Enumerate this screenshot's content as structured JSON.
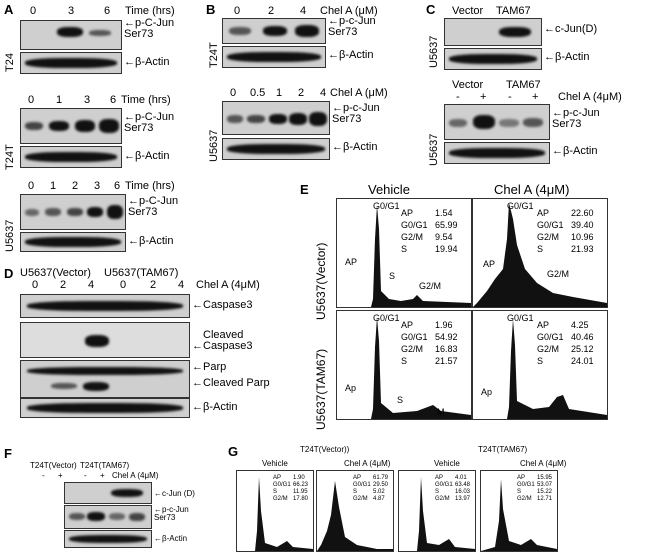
{
  "panels": {
    "A": "A",
    "B": "B",
    "C": "C",
    "D": "D",
    "E": "E",
    "F": "F",
    "G": "G"
  },
  "A": {
    "time_label": "Time (hrs)",
    "t24_times": [
      "0",
      "3",
      "6"
    ],
    "t24t_times": [
      "0",
      "1",
      "3",
      "6"
    ],
    "u5637_times": [
      "0",
      "1",
      "2",
      "3",
      "6"
    ],
    "cell_t24": "T24",
    "cell_t24t": "T24T",
    "cell_u5637": "U5637",
    "target": "p-C-Jun\nSer73",
    "target_l1": "p-C-Jun",
    "target_l2": "Ser73",
    "actin": "β-Actin",
    "arrow": "←"
  },
  "B": {
    "chel_label": "Chel A (μM)",
    "t24t_doses": [
      "0",
      "2",
      "4"
    ],
    "u5637_doses": [
      "0",
      "0.5",
      "1",
      "2",
      "4"
    ],
    "cell_t24t": "T24T",
    "cell_u5637": "U5637",
    "target_l1": "p-c-Jun",
    "target_l2": "Ser73",
    "actin": "β-Actin"
  },
  "C": {
    "vector": "Vector",
    "tam67": "TAM67",
    "cjun": "c-Jun(D)",
    "actin": "β-Actin",
    "cell": "U5637",
    "chel": "Chel A (4μM)",
    "signs": [
      "-",
      "+",
      "-",
      "+"
    ],
    "target_l1": "p-c-Jun",
    "target_l2": "Ser73"
  },
  "D": {
    "group1": "U5637(Vector)",
    "group2": "U5637(TAM67)",
    "doses": [
      "0",
      "2",
      "4",
      "0",
      "2",
      "4"
    ],
    "chel": "Chel A (4μM)",
    "rows": [
      "Caspase3",
      "Cleaved",
      "Caspase3",
      "Parp",
      "Cleaved Parp",
      "β-Actin"
    ]
  },
  "E": {
    "vehicle": "Vehicle",
    "chel": "Chel A (4μM)",
    "row1": "U5637(Vector)",
    "row2": "U5637(TAM67)",
    "peak": "G0/G1",
    "ap": "AP",
    "ap2": "Ap",
    "s": "S",
    "g2m": "G2/M",
    "m": "M",
    "stats": [
      {
        "AP": "1.54",
        "G0/G1": "65.99",
        "G2/M": "9.54",
        "S": "19.94"
      },
      {
        "AP": "22.60",
        "G0/G1": "39.40",
        "G2/M": "10.96",
        "S": "21.93"
      },
      {
        "AP": "1.96",
        "G0/G1": "54.92",
        "G2/M": "16.83",
        "S": "21.57"
      },
      {
        "AP": "4.25",
        "G0/G1": "40.46",
        "G2/M": "25.12",
        "S": "24.01"
      }
    ],
    "keys": [
      "AP",
      "G0/G1",
      "G2/M",
      "S"
    ]
  },
  "F": {
    "group1": "T24T(Vector)",
    "group2": "T24T(TAM67)",
    "signs": [
      "-",
      "+",
      "-",
      "+"
    ],
    "chel": "Chel A (4μM)",
    "cjun": "c-Jun (D)",
    "target_l1": "p-c-Jun",
    "target_l2": "Ser73",
    "actin": "β-Actin"
  },
  "G": {
    "group1": "T24T(Vector))",
    "group2": "T24T(TAM67)",
    "vehicle": "Vehicle",
    "chel": "Chel A (4μM)",
    "keys": [
      "AP",
      "G0/G1",
      "S",
      "G2/M"
    ],
    "stats": [
      {
        "AP": "1.90",
        "G0/G1": "66.23",
        "S": "11.95",
        "G2/M": "17.80"
      },
      {
        "AP": "61.79",
        "G0/G1": "29.50",
        "S": "5.02",
        "G2/M": "4.87"
      },
      {
        "AP": "4.01",
        "G0/G1": "63.48",
        "S": "16.03",
        "G2/M": "13.97"
      },
      {
        "AP": "15.95",
        "G0/G1": "53.07",
        "S": "15.22",
        "G2/M": "12.71"
      }
    ]
  }
}
